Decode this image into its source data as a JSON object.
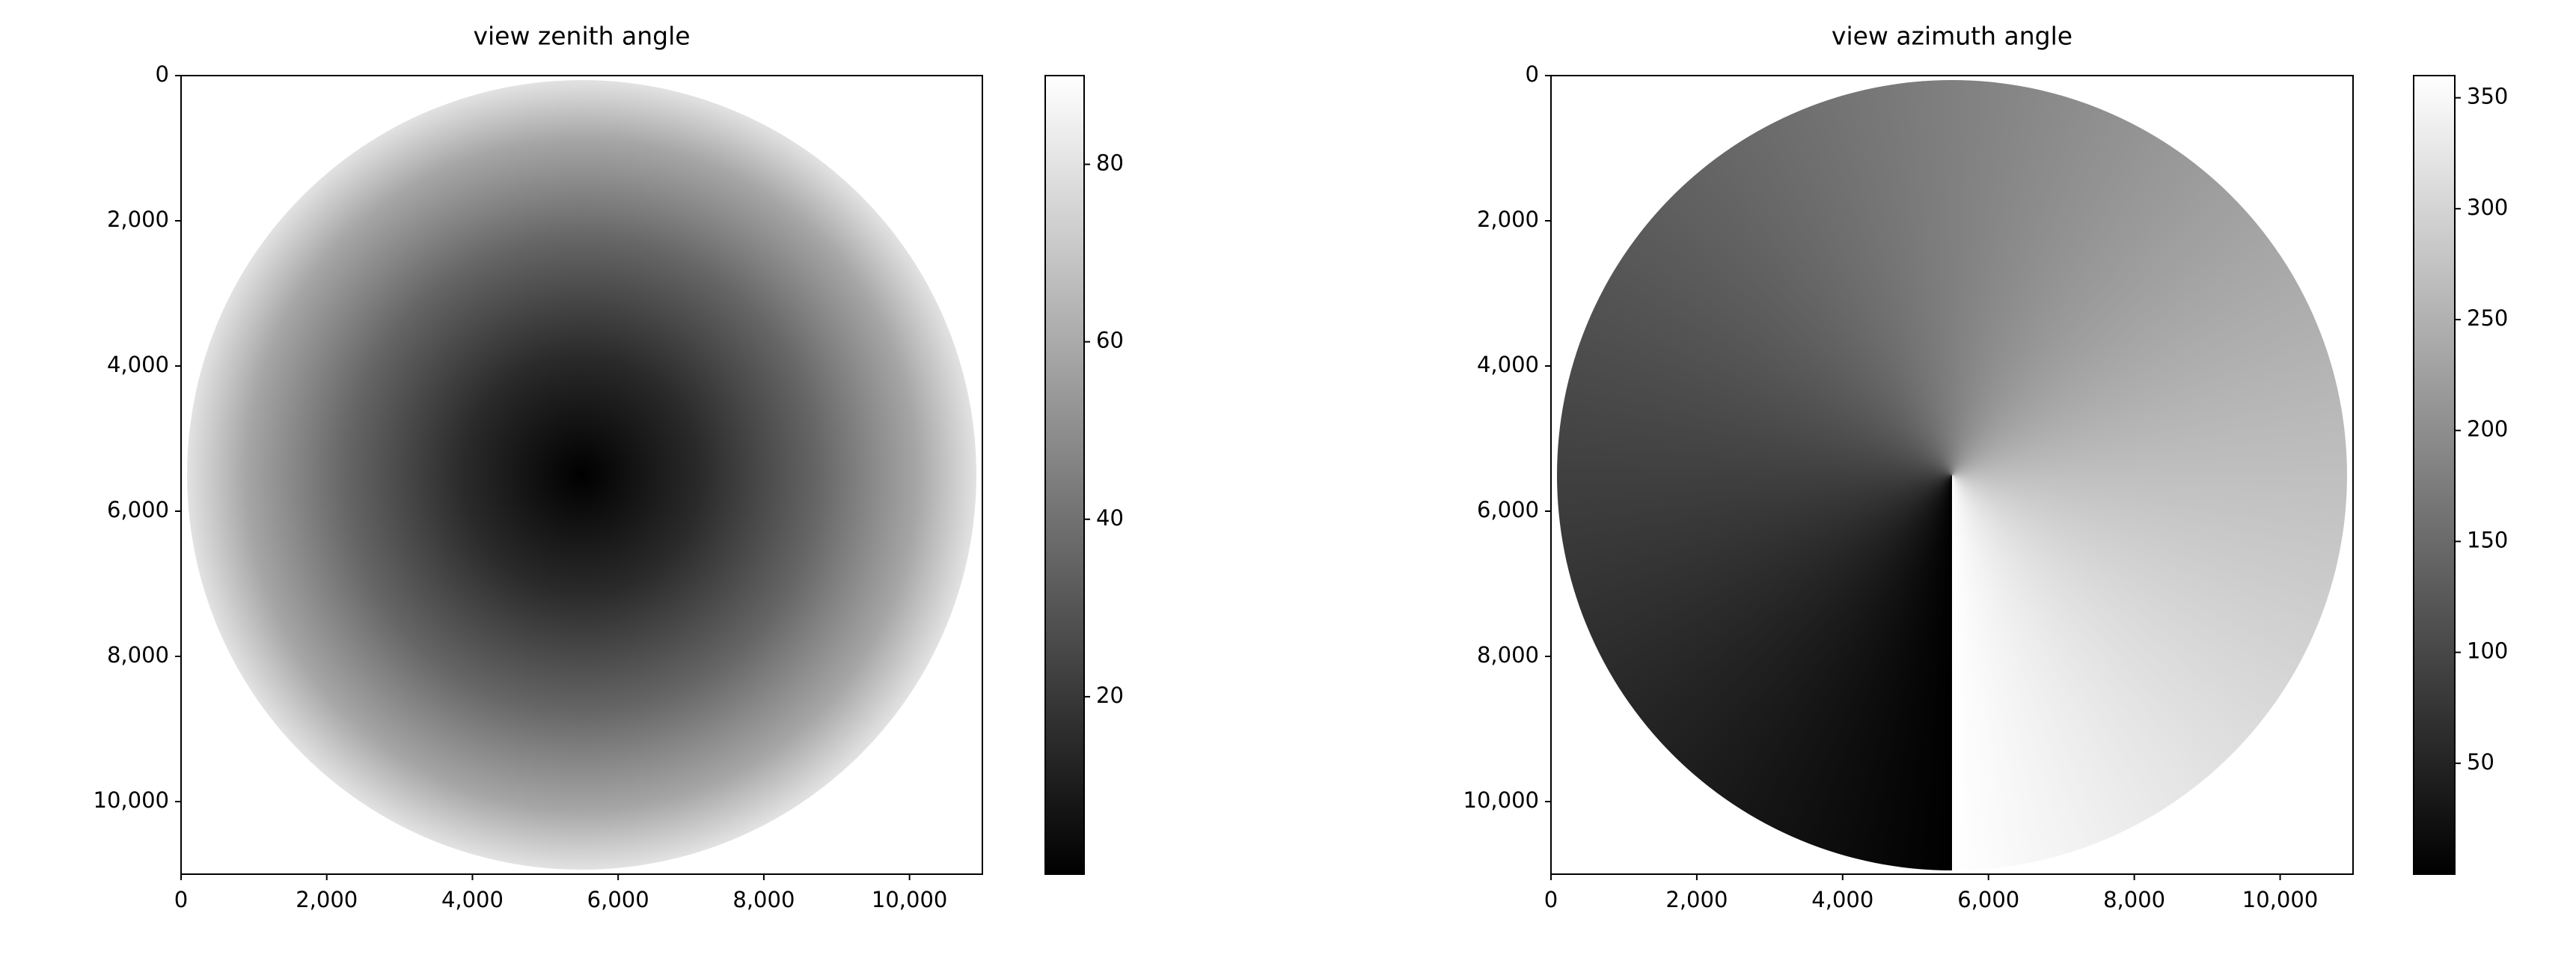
{
  "chart_data": [
    {
      "type": "image",
      "title": "view zenith angle",
      "cmap": "gray",
      "xlim": [
        0,
        11000
      ],
      "ylim": [
        11000,
        0
      ],
      "xticks": [
        0,
        {
          "value": 2000,
          "label": "2,000"
        },
        {
          "value": 4000,
          "label": "4,000"
        },
        {
          "value": 6000,
          "label": "6,000"
        },
        {
          "value": 8000,
          "label": "8,000"
        },
        {
          "value": 10000,
          "label": "10,000"
        }
      ],
      "yticks": [
        0,
        {
          "value": 2000,
          "label": "2,000"
        },
        {
          "value": 4000,
          "label": "4,000"
        },
        {
          "value": 6000,
          "label": "6,000"
        },
        {
          "value": 8000,
          "label": "8,000"
        },
        {
          "value": 10000,
          "label": "10,000"
        }
      ],
      "colorbar": {
        "clim": [
          0,
          90
        ],
        "ticks": [
          20,
          40,
          60,
          80
        ]
      }
    },
    {
      "type": "image",
      "title": "view azimuth angle",
      "cmap": "gray",
      "xlim": [
        0,
        11000
      ],
      "ylim": [
        11000,
        0
      ],
      "xticks": [
        0,
        {
          "value": 2000,
          "label": "2,000"
        },
        {
          "value": 4000,
          "label": "4,000"
        },
        {
          "value": 6000,
          "label": "6,000"
        },
        {
          "value": 8000,
          "label": "8,000"
        },
        {
          "value": 10000,
          "label": "10,000"
        }
      ],
      "yticks": [
        0,
        {
          "value": 2000,
          "label": "2,000"
        },
        {
          "value": 4000,
          "label": "4,000"
        },
        {
          "value": 6000,
          "label": "6,000"
        },
        {
          "value": 8000,
          "label": "8,000"
        },
        {
          "value": 10000,
          "label": "10,000"
        }
      ],
      "colorbar": {
        "clim": [
          0,
          360
        ],
        "ticks": [
          50,
          100,
          150,
          200,
          250,
          300,
          350
        ]
      }
    }
  ]
}
